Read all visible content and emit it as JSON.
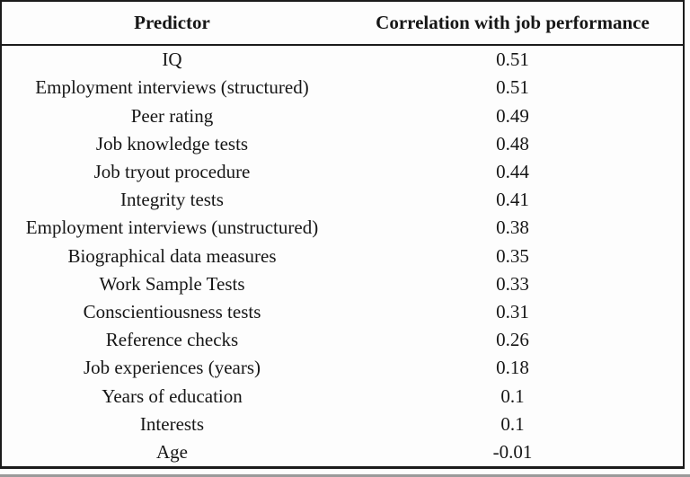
{
  "table": {
    "columns": [
      "Predictor",
      "Correlation with job performance"
    ],
    "rows": [
      {
        "predictor": "IQ",
        "correlation": "0.51"
      },
      {
        "predictor": "Employment interviews (structured)",
        "correlation": "0.51"
      },
      {
        "predictor": "Peer rating",
        "correlation": "0.49"
      },
      {
        "predictor": "Job knowledge tests",
        "correlation": "0.48"
      },
      {
        "predictor": "Job tryout procedure",
        "correlation": "0.44"
      },
      {
        "predictor": "Integrity tests",
        "correlation": "0.41"
      },
      {
        "predictor": "Employment interviews (unstructured)",
        "correlation": "0.38"
      },
      {
        "predictor": "Biographical data measures",
        "correlation": "0.35"
      },
      {
        "predictor": "Work Sample Tests",
        "correlation": "0.33"
      },
      {
        "predictor": "Conscientiousness tests",
        "correlation": "0.31"
      },
      {
        "predictor": "Reference checks",
        "correlation": "0.26"
      },
      {
        "predictor": "Job experiences (years)",
        "correlation": "0.18"
      },
      {
        "predictor": "Years of education",
        "correlation": "0.1"
      },
      {
        "predictor": "Interests",
        "correlation": "0.1"
      },
      {
        "predictor": "Age",
        "correlation": "-0.01"
      }
    ]
  },
  "colors": {
    "border": "#1b1b1b",
    "text": "#161616",
    "background": "#fdfdfd",
    "bottom_strip": "#9a9a9a"
  },
  "chart_data": {
    "type": "table",
    "title": "",
    "columns": [
      "Predictor",
      "Correlation with job performance"
    ],
    "categories": [
      "IQ",
      "Employment interviews (structured)",
      "Peer rating",
      "Job knowledge tests",
      "Job tryout procedure",
      "Integrity tests",
      "Employment interviews (unstructured)",
      "Biographical data measures",
      "Work Sample Tests",
      "Conscientiousness tests",
      "Reference checks",
      "Job experiences (years)",
      "Years of education",
      "Interests",
      "Age"
    ],
    "values": [
      0.51,
      0.51,
      0.49,
      0.48,
      0.44,
      0.41,
      0.38,
      0.35,
      0.33,
      0.31,
      0.26,
      0.18,
      0.1,
      0.1,
      -0.01
    ]
  }
}
